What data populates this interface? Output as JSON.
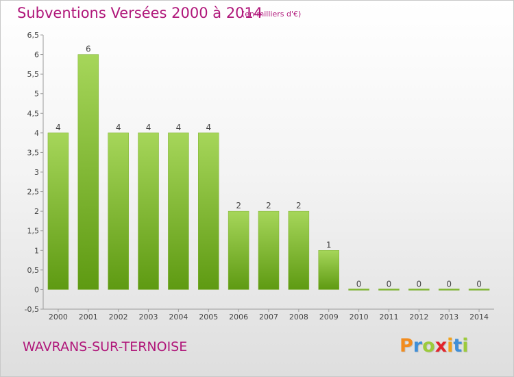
{
  "header": {
    "title": "Subventions Versées 2000 à 2014",
    "subtitle": "(en milliers d'€)"
  },
  "footer": {
    "commune": "WAVRANS-SUR-TERNOISE",
    "logo_text": "Proxiti"
  },
  "colors": {
    "accent": "#b0177a",
    "bar_light": "#a6d65a",
    "bar_dark": "#5e9a12",
    "logo_letters": [
      "#f28c1e",
      "#3f8fd8",
      "#9ccb3b",
      "#e2242c",
      "#f2a21b",
      "#3f8fd8",
      "#9ccb3b"
    ]
  },
  "chart_data": {
    "type": "bar",
    "title": "Subventions Versées 2000 à 2014",
    "subtitle": "(en milliers d'€)",
    "categories": [
      "2000",
      "2001",
      "2002",
      "2003",
      "2004",
      "2005",
      "2006",
      "2007",
      "2008",
      "2009",
      "2010",
      "2011",
      "2012",
      "2013",
      "2014"
    ],
    "values": [
      4,
      6,
      4,
      4,
      4,
      4,
      2,
      2,
      2,
      1,
      0,
      0,
      0,
      0,
      0
    ],
    "data_labels": [
      "4",
      "6",
      "4",
      "4",
      "4",
      "4",
      "2",
      "2",
      "2",
      "1",
      "0",
      "0",
      "0",
      "0",
      "0"
    ],
    "ylim": [
      -0.5,
      6.5
    ],
    "yticks": [
      -0.5,
      0,
      0.5,
      1,
      1.5,
      2,
      2.5,
      3,
      3.5,
      4,
      4.5,
      5,
      5.5,
      6,
      6.5
    ],
    "ytick_labels": [
      "-0,5",
      "0",
      "0,5",
      "1",
      "1,5",
      "2",
      "2,5",
      "3",
      "3,5",
      "4",
      "4,5",
      "5",
      "5,5",
      "6",
      "6,5"
    ],
    "xlabel": "",
    "ylabel": "",
    "grid": false
  }
}
